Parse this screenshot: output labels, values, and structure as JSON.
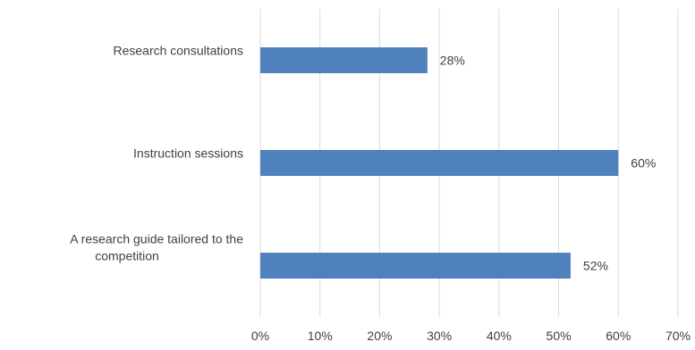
{
  "chart_data": {
    "type": "bar",
    "orientation": "horizontal",
    "title": "",
    "xlabel": "",
    "ylabel": "",
    "categories": [
      [
        "Research consultations"
      ],
      [
        "Instruction sessions"
      ],
      [
        "A research guide tailored to the",
        "competition"
      ]
    ],
    "values": [
      28,
      60,
      52
    ],
    "value_labels": [
      "28%",
      "60%",
      "52%"
    ],
    "xlim": [
      0,
      70
    ],
    "x_ticks": [
      0,
      10,
      20,
      30,
      40,
      50,
      60,
      70
    ],
    "x_tick_labels": [
      "0%",
      "10%",
      "20%",
      "30%",
      "40%",
      "50%",
      "60%",
      "70%"
    ],
    "grid": "vertical",
    "legend": "none",
    "colors": {
      "bar": "#4f81bd",
      "grid": "#d9d9d9",
      "text": "#404040"
    }
  }
}
